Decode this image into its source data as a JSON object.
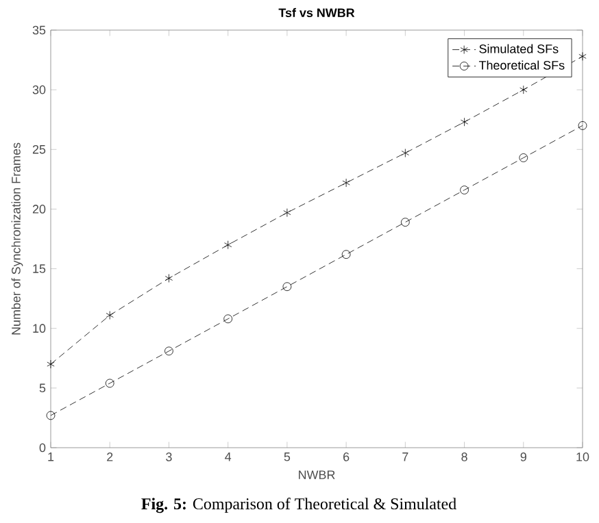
{
  "chart_data": {
    "type": "line",
    "title": "Tsf vs NWBR",
    "xlabel": "NWBR",
    "ylabel": "Number of Synchronization Frames",
    "x": [
      1,
      2,
      3,
      4,
      5,
      6,
      7,
      8,
      9,
      10
    ],
    "series": [
      {
        "name": "Simulated SFs",
        "color": "#000000",
        "marker": "cross",
        "values": [
          7.0,
          11.1,
          14.2,
          17.0,
          19.7,
          22.2,
          24.7,
          27.3,
          30.0,
          32.8
        ]
      },
      {
        "name": "Theoretical SFs",
        "color": "#000000",
        "marker": "circle",
        "values": [
          2.7,
          5.4,
          8.1,
          10.8,
          13.5,
          16.2,
          18.9,
          21.6,
          24.3,
          27.0
        ]
      }
    ],
    "line_style": "dashed",
    "xlim": [
      1,
      10
    ],
    "xticks": [
      1,
      2,
      3,
      4,
      5,
      6,
      7,
      8,
      9,
      10
    ],
    "ylim": [
      0,
      35
    ],
    "yticks": [
      0,
      5,
      10,
      15,
      20,
      25,
      30,
      35
    ],
    "grid": false,
    "legend": "top right",
    "annotations": [
      "**Fig. 5:** Comparison of Theoretical & Simulated"
    ]
  }
}
